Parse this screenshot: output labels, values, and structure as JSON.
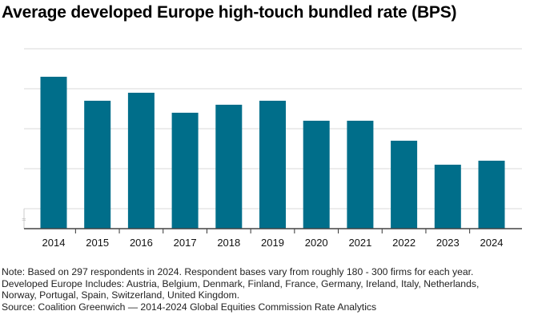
{
  "chart_data": {
    "type": "bar",
    "title": "Average developed Europe high-touch bundled rate (BPS)",
    "categories": [
      "2014",
      "2015",
      "2016",
      "2017",
      "2018",
      "2019",
      "2020",
      "2021",
      "2022",
      "2023",
      "2024"
    ],
    "values": [
      3.3,
      2.7,
      2.9,
      2.4,
      2.6,
      2.7,
      2.2,
      2.2,
      1.7,
      1.1,
      1.2
    ],
    "ylim": [
      -0.5,
      4
    ],
    "grid": true,
    "y_tick_labels": false,
    "axis_break": true,
    "bar_color": "#006e8a",
    "xlabel": "",
    "ylabel": ""
  },
  "notes": [
    "Note: Based on 297 respondents in 2024. Respondent bases vary from roughly 180 - 300 firms for each year.",
    "Developed Europe Includes: Austria, Belgium, Denmark, Finland, France, Germany, Ireland, Italy, Netherlands,",
    "Norway, Portugal, Spain, Switzerland, United Kingdom.",
    "Source: Coalition Greenwich — 2014-2024 Global Equities Commission Rate Analytics"
  ]
}
